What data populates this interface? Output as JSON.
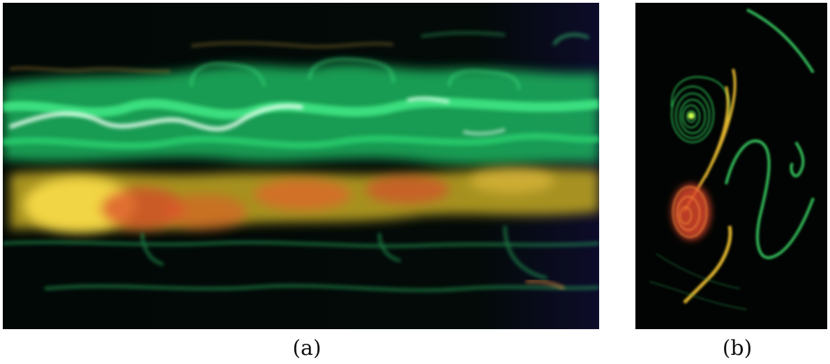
{
  "figure": {
    "panels": [
      {
        "id": "a",
        "label": "(a)",
        "description_colors": {
          "background": "#000000",
          "dye_green": "#2ee07a",
          "dye_white": "#e8fff0",
          "dye_yellow": "#ffe24a",
          "dye_red": "#d8442a"
        }
      },
      {
        "id": "b",
        "label": "(b)",
        "description_colors": {
          "background": "#000000",
          "dye_green": "#2fcf5a",
          "dye_yellow": "#f5c431",
          "dye_red": "#d9452c"
        }
      }
    ]
  }
}
